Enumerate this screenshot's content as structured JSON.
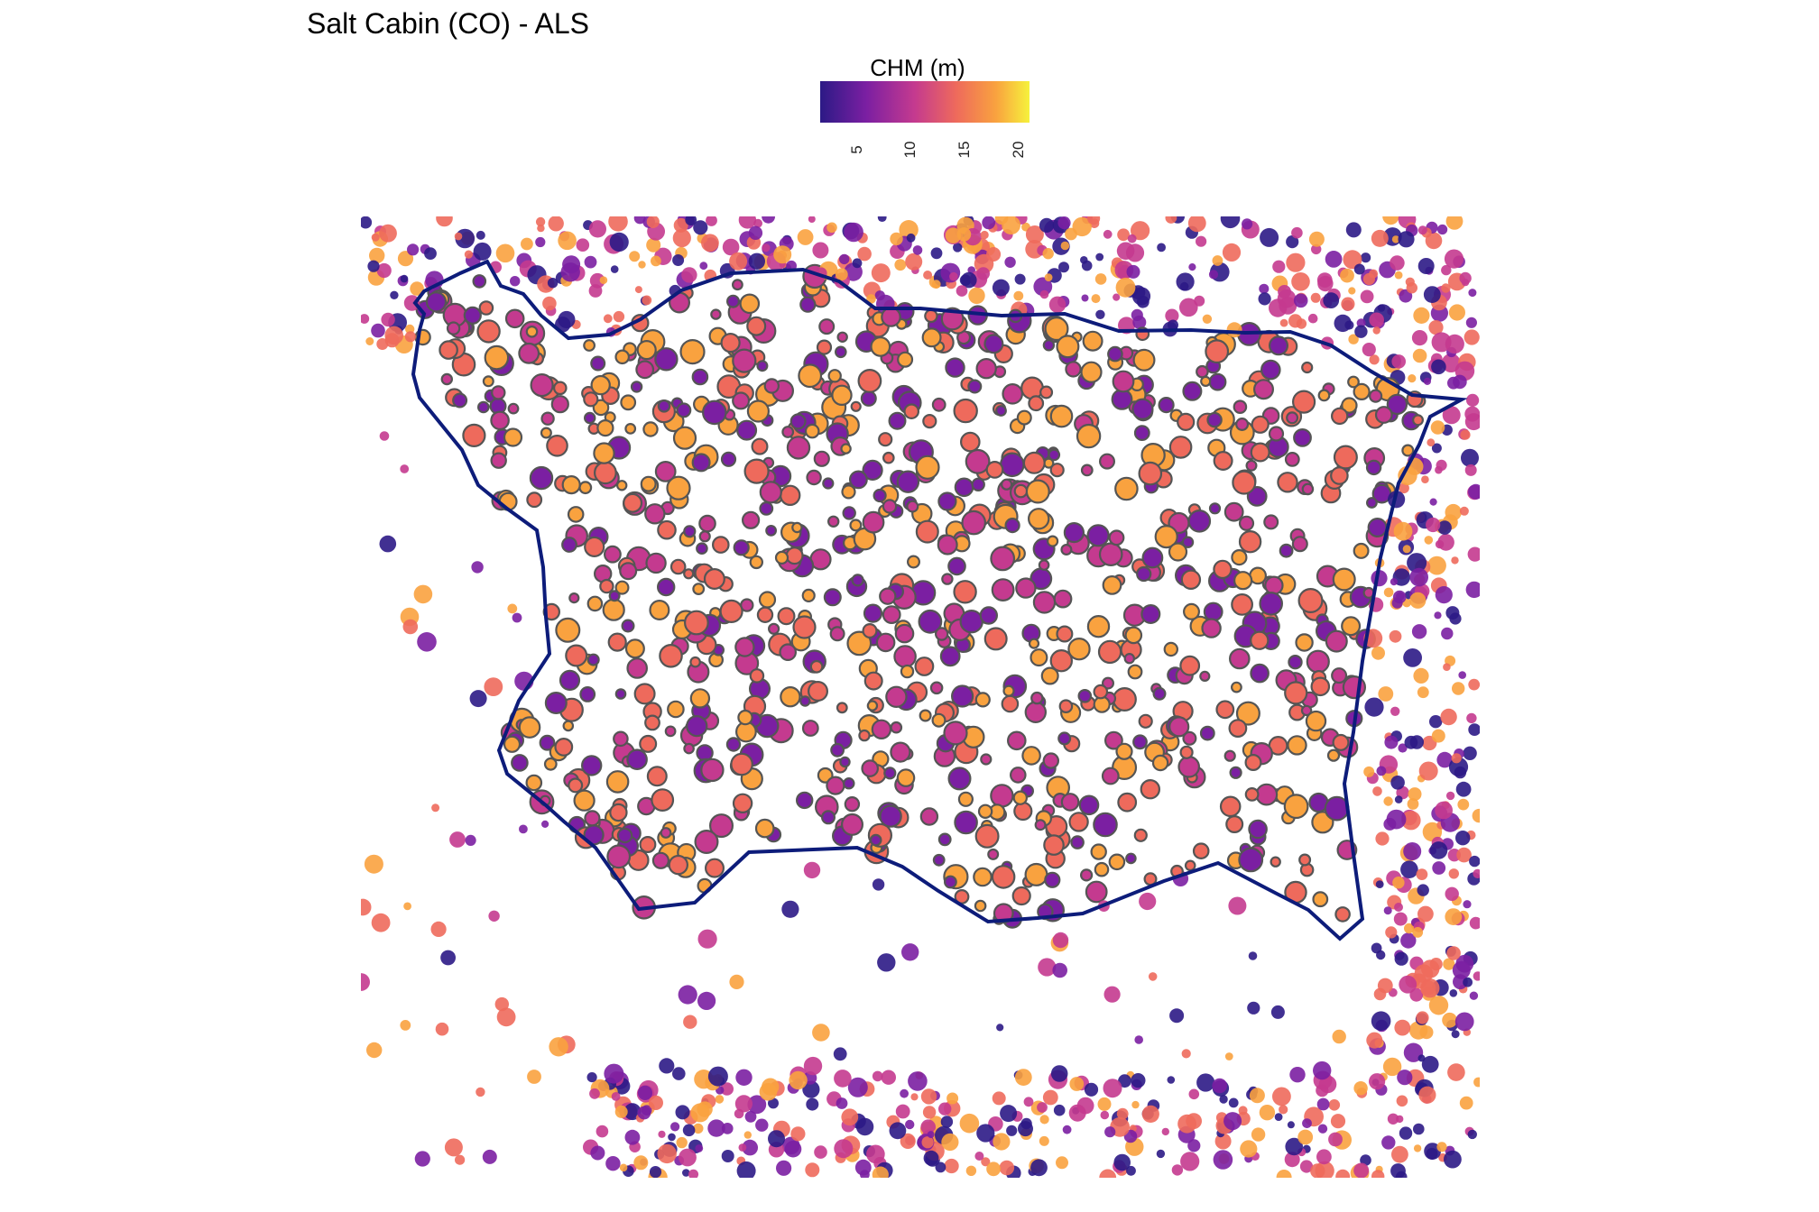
{
  "title": "Salt Cabin (CO) - ALS",
  "legend": {
    "title": "CHM (m)",
    "ticks": [
      "5",
      "10",
      "15",
      "20"
    ],
    "colors": [
      "#2c1a86",
      "#7b1fa2",
      "#c43a8f",
      "#ee6a5c",
      "#f9a23f",
      "#f6f23c"
    ],
    "range": [
      2,
      22
    ]
  },
  "map": {
    "boundary_color": "#0d1c7a",
    "crown_outline_color": "#555555"
  }
}
